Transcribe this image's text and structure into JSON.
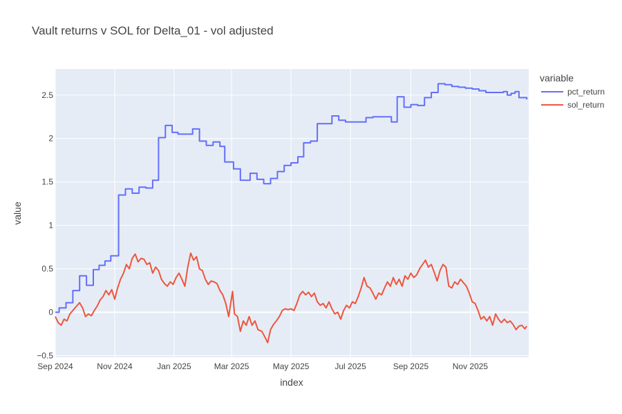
{
  "chart_data": {
    "type": "line",
    "title": "Vault returns v SOL for Delta_01 - vol adjusted",
    "xlabel": "index",
    "ylabel": "value",
    "x_start": "2024-09-01",
    "x_end": "2025-12-31",
    "ylim": [
      -0.52,
      2.8
    ],
    "grid": true,
    "legend": {
      "title": "variable",
      "position": "right"
    },
    "x_ticks": [
      {
        "label": "Sep 2024",
        "date": "2024-09-01"
      },
      {
        "label": "Nov 2024",
        "date": "2024-11-01"
      },
      {
        "label": "Jan 2025",
        "date": "2025-01-01"
      },
      {
        "label": "Mar 2025",
        "date": "2025-03-01"
      },
      {
        "label": "May 2025",
        "date": "2025-05-01"
      },
      {
        "label": "Jul 2025",
        "date": "2025-07-01"
      },
      {
        "label": "Sep 2025",
        "date": "2025-09-01"
      },
      {
        "label": "Nov 2025",
        "date": "2025-11-01"
      }
    ],
    "y_ticks": [
      {
        "label": "−0.5",
        "value": -0.5
      },
      {
        "label": "0",
        "value": 0
      },
      {
        "label": "0.5",
        "value": 0.5
      },
      {
        "label": "1",
        "value": 1
      },
      {
        "label": "1.5",
        "value": 1.5
      },
      {
        "label": "2",
        "value": 2
      },
      {
        "label": "2.5",
        "value": 2.5
      }
    ],
    "series": [
      {
        "name": "pct_return",
        "color": "#636efa",
        "shape": "step",
        "points": [
          [
            "2024-09-01",
            0.0
          ],
          [
            "2024-09-05",
            0.05
          ],
          [
            "2024-09-12",
            0.11
          ],
          [
            "2024-09-19",
            0.25
          ],
          [
            "2024-09-26",
            0.42
          ],
          [
            "2024-10-03",
            0.31
          ],
          [
            "2024-10-10",
            0.49
          ],
          [
            "2024-10-16",
            0.54
          ],
          [
            "2024-10-22",
            0.59
          ],
          [
            "2024-10-28",
            0.65
          ],
          [
            "2024-11-05",
            1.35
          ],
          [
            "2024-11-12",
            1.42
          ],
          [
            "2024-11-19",
            1.37
          ],
          [
            "2024-11-26",
            1.44
          ],
          [
            "2024-12-03",
            1.43
          ],
          [
            "2024-12-10",
            1.52
          ],
          [
            "2024-12-16",
            2.01
          ],
          [
            "2024-12-23",
            2.15
          ],
          [
            "2024-12-30",
            2.07
          ],
          [
            "2025-01-05",
            2.05
          ],
          [
            "2025-01-20",
            2.11
          ],
          [
            "2025-01-27",
            1.97
          ],
          [
            "2025-02-03",
            1.92
          ],
          [
            "2025-02-10",
            1.96
          ],
          [
            "2025-02-17",
            1.91
          ],
          [
            "2025-02-22",
            1.73
          ],
          [
            "2025-03-03",
            1.65
          ],
          [
            "2025-03-10",
            1.52
          ],
          [
            "2025-03-20",
            1.6
          ],
          [
            "2025-03-27",
            1.53
          ],
          [
            "2025-04-03",
            1.48
          ],
          [
            "2025-04-10",
            1.54
          ],
          [
            "2025-04-17",
            1.62
          ],
          [
            "2025-04-24",
            1.69
          ],
          [
            "2025-05-01",
            1.72
          ],
          [
            "2025-05-08",
            1.79
          ],
          [
            "2025-05-14",
            1.95
          ],
          [
            "2025-05-21",
            1.97
          ],
          [
            "2025-05-28",
            2.17
          ],
          [
            "2025-06-12",
            2.26
          ],
          [
            "2025-06-19",
            2.21
          ],
          [
            "2025-06-26",
            2.19
          ],
          [
            "2025-07-17",
            2.24
          ],
          [
            "2025-07-24",
            2.25
          ],
          [
            "2025-08-12",
            2.19
          ],
          [
            "2025-08-18",
            2.48
          ],
          [
            "2025-08-25",
            2.36
          ],
          [
            "2025-09-01",
            2.39
          ],
          [
            "2025-09-08",
            2.38
          ],
          [
            "2025-09-15",
            2.47
          ],
          [
            "2025-09-22",
            2.53
          ],
          [
            "2025-09-29",
            2.63
          ],
          [
            "2025-10-06",
            2.62
          ],
          [
            "2025-10-13",
            2.6
          ],
          [
            "2025-10-20",
            2.59
          ],
          [
            "2025-10-27",
            2.58
          ],
          [
            "2025-11-03",
            2.57
          ],
          [
            "2025-11-10",
            2.55
          ],
          [
            "2025-11-17",
            2.53
          ],
          [
            "2025-12-05",
            2.54
          ],
          [
            "2025-12-09",
            2.5
          ],
          [
            "2025-12-13",
            2.52
          ],
          [
            "2025-12-17",
            2.54
          ],
          [
            "2025-12-21",
            2.47
          ],
          [
            "2025-12-29",
            2.45
          ]
        ]
      },
      {
        "name": "sol_return",
        "color": "#ef553b",
        "shape": "linear",
        "points": [
          [
            "2024-09-01",
            -0.05
          ],
          [
            "2024-09-04",
            -0.12
          ],
          [
            "2024-09-07",
            -0.15
          ],
          [
            "2024-09-10",
            -0.08
          ],
          [
            "2024-09-13",
            -0.1
          ],
          [
            "2024-09-16",
            -0.02
          ],
          [
            "2024-09-19",
            0.02
          ],
          [
            "2024-09-22",
            0.06
          ],
          [
            "2024-09-26",
            0.11
          ],
          [
            "2024-09-29",
            0.05
          ],
          [
            "2024-10-02",
            -0.05
          ],
          [
            "2024-10-05",
            -0.02
          ],
          [
            "2024-10-08",
            -0.04
          ],
          [
            "2024-10-11",
            0.02
          ],
          [
            "2024-10-14",
            0.07
          ],
          [
            "2024-10-17",
            0.14
          ],
          [
            "2024-10-20",
            0.18
          ],
          [
            "2024-10-23",
            0.25
          ],
          [
            "2024-10-26",
            0.2
          ],
          [
            "2024-10-29",
            0.26
          ],
          [
            "2024-11-01",
            0.15
          ],
          [
            "2024-11-04",
            0.28
          ],
          [
            "2024-11-07",
            0.38
          ],
          [
            "2024-11-10",
            0.45
          ],
          [
            "2024-11-13",
            0.55
          ],
          [
            "2024-11-16",
            0.5
          ],
          [
            "2024-11-19",
            0.62
          ],
          [
            "2024-11-22",
            0.67
          ],
          [
            "2024-11-25",
            0.58
          ],
          [
            "2024-11-28",
            0.62
          ],
          [
            "2024-12-01",
            0.61
          ],
          [
            "2024-12-04",
            0.55
          ],
          [
            "2024-12-07",
            0.57
          ],
          [
            "2024-12-10",
            0.45
          ],
          [
            "2024-12-13",
            0.52
          ],
          [
            "2024-12-16",
            0.48
          ],
          [
            "2024-12-19",
            0.38
          ],
          [
            "2024-12-22",
            0.33
          ],
          [
            "2024-12-25",
            0.3
          ],
          [
            "2024-12-28",
            0.35
          ],
          [
            "2024-12-31",
            0.32
          ],
          [
            "2025-01-03",
            0.4
          ],
          [
            "2025-01-06",
            0.45
          ],
          [
            "2025-01-09",
            0.38
          ],
          [
            "2025-01-12",
            0.3
          ],
          [
            "2025-01-15",
            0.52
          ],
          [
            "2025-01-18",
            0.68
          ],
          [
            "2025-01-21",
            0.6
          ],
          [
            "2025-01-24",
            0.64
          ],
          [
            "2025-01-27",
            0.5
          ],
          [
            "2025-01-30",
            0.48
          ],
          [
            "2025-02-02",
            0.38
          ],
          [
            "2025-02-05",
            0.32
          ],
          [
            "2025-02-08",
            0.36
          ],
          [
            "2025-02-11",
            0.35
          ],
          [
            "2025-02-14",
            0.33
          ],
          [
            "2025-02-17",
            0.25
          ],
          [
            "2025-02-20",
            0.2
          ],
          [
            "2025-02-23",
            0.1
          ],
          [
            "2025-02-26",
            -0.05
          ],
          [
            "2025-03-02",
            0.24
          ],
          [
            "2025-03-04",
            -0.02
          ],
          [
            "2025-03-07",
            -0.05
          ],
          [
            "2025-03-10",
            -0.22
          ],
          [
            "2025-03-13",
            -0.1
          ],
          [
            "2025-03-16",
            -0.15
          ],
          [
            "2025-03-19",
            -0.05
          ],
          [
            "2025-03-22",
            -0.15
          ],
          [
            "2025-03-25",
            -0.1
          ],
          [
            "2025-03-28",
            -0.2
          ],
          [
            "2025-04-01",
            -0.22
          ],
          [
            "2025-04-04",
            -0.28
          ],
          [
            "2025-04-07",
            -0.35
          ],
          [
            "2025-04-10",
            -0.2
          ],
          [
            "2025-04-13",
            -0.14
          ],
          [
            "2025-04-16",
            -0.1
          ],
          [
            "2025-04-19",
            -0.05
          ],
          [
            "2025-04-22",
            0.02
          ],
          [
            "2025-04-25",
            0.04
          ],
          [
            "2025-04-28",
            0.03
          ],
          [
            "2025-05-01",
            0.04
          ],
          [
            "2025-05-04",
            0.02
          ],
          [
            "2025-05-07",
            0.1
          ],
          [
            "2025-05-10",
            0.2
          ],
          [
            "2025-05-13",
            0.24
          ],
          [
            "2025-05-16",
            0.2
          ],
          [
            "2025-05-19",
            0.23
          ],
          [
            "2025-05-22",
            0.18
          ],
          [
            "2025-05-25",
            0.22
          ],
          [
            "2025-05-28",
            0.12
          ],
          [
            "2025-05-31",
            0.08
          ],
          [
            "2025-06-03",
            0.1
          ],
          [
            "2025-06-06",
            0.05
          ],
          [
            "2025-06-09",
            0.12
          ],
          [
            "2025-06-12",
            0.04
          ],
          [
            "2025-06-15",
            -0.02
          ],
          [
            "2025-06-18",
            0.0
          ],
          [
            "2025-06-21",
            -0.08
          ],
          [
            "2025-06-24",
            0.02
          ],
          [
            "2025-06-27",
            0.08
          ],
          [
            "2025-06-30",
            0.05
          ],
          [
            "2025-07-03",
            0.12
          ],
          [
            "2025-07-06",
            0.1
          ],
          [
            "2025-07-09",
            0.18
          ],
          [
            "2025-07-12",
            0.28
          ],
          [
            "2025-07-15",
            0.4
          ],
          [
            "2025-07-18",
            0.3
          ],
          [
            "2025-07-21",
            0.28
          ],
          [
            "2025-07-24",
            0.22
          ],
          [
            "2025-07-27",
            0.15
          ],
          [
            "2025-07-30",
            0.22
          ],
          [
            "2025-08-02",
            0.2
          ],
          [
            "2025-08-05",
            0.28
          ],
          [
            "2025-08-08",
            0.35
          ],
          [
            "2025-08-11",
            0.3
          ],
          [
            "2025-08-14",
            0.4
          ],
          [
            "2025-08-17",
            0.32
          ],
          [
            "2025-08-20",
            0.38
          ],
          [
            "2025-08-23",
            0.3
          ],
          [
            "2025-08-26",
            0.42
          ],
          [
            "2025-08-29",
            0.38
          ],
          [
            "2025-09-01",
            0.45
          ],
          [
            "2025-09-04",
            0.4
          ],
          [
            "2025-09-07",
            0.43
          ],
          [
            "2025-09-10",
            0.5
          ],
          [
            "2025-09-13",
            0.55
          ],
          [
            "2025-09-16",
            0.6
          ],
          [
            "2025-09-19",
            0.52
          ],
          [
            "2025-09-22",
            0.55
          ],
          [
            "2025-09-25",
            0.46
          ],
          [
            "2025-09-28",
            0.36
          ],
          [
            "2025-10-01",
            0.48
          ],
          [
            "2025-10-04",
            0.55
          ],
          [
            "2025-10-07",
            0.52
          ],
          [
            "2025-10-10",
            0.3
          ],
          [
            "2025-10-13",
            0.28
          ],
          [
            "2025-10-16",
            0.35
          ],
          [
            "2025-10-19",
            0.32
          ],
          [
            "2025-10-22",
            0.38
          ],
          [
            "2025-10-25",
            0.34
          ],
          [
            "2025-10-28",
            0.3
          ],
          [
            "2025-10-31",
            0.22
          ],
          [
            "2025-11-03",
            0.12
          ],
          [
            "2025-11-06",
            0.1
          ],
          [
            "2025-11-09",
            0.02
          ],
          [
            "2025-11-12",
            -0.08
          ],
          [
            "2025-11-15",
            -0.05
          ],
          [
            "2025-11-18",
            -0.1
          ],
          [
            "2025-11-21",
            -0.05
          ],
          [
            "2025-11-24",
            -0.15
          ],
          [
            "2025-11-27",
            -0.02
          ],
          [
            "2025-11-30",
            -0.08
          ],
          [
            "2025-12-03",
            -0.12
          ],
          [
            "2025-12-06",
            -0.08
          ],
          [
            "2025-12-09",
            -0.12
          ],
          [
            "2025-12-12",
            -0.1
          ],
          [
            "2025-12-15",
            -0.14
          ],
          [
            "2025-12-18",
            -0.2
          ],
          [
            "2025-12-21",
            -0.16
          ],
          [
            "2025-12-24",
            -0.15
          ],
          [
            "2025-12-27",
            -0.19
          ],
          [
            "2025-12-29",
            -0.16
          ]
        ]
      }
    ]
  }
}
